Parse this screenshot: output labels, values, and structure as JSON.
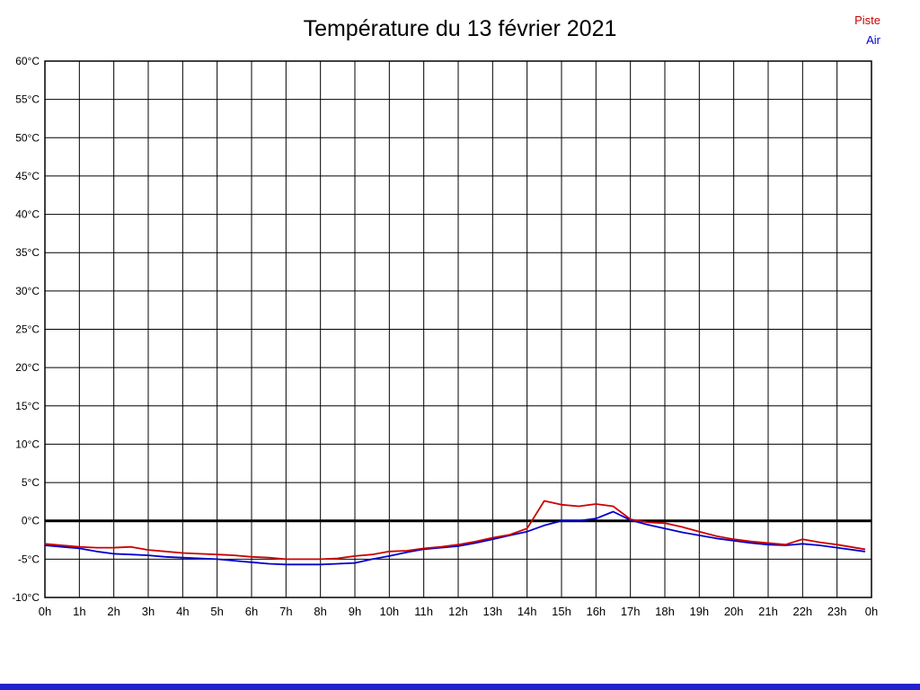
{
  "legend": {
    "piste": "Piste",
    "air": "Air"
  },
  "footer_bar_color": "#2222cc",
  "chart_data": {
    "type": "line",
    "title": "Température du 13 février 2021",
    "xlabel": "",
    "ylabel": "",
    "grid": true,
    "legend_position": "top-right",
    "x_axis": {
      "min": 0,
      "max": 24,
      "tick_labels": [
        "0h",
        "1h",
        "2h",
        "3h",
        "4h",
        "5h",
        "6h",
        "7h",
        "8h",
        "9h",
        "10h",
        "11h",
        "12h",
        "13h",
        "14h",
        "15h",
        "16h",
        "17h",
        "18h",
        "19h",
        "20h",
        "21h",
        "22h",
        "23h",
        "0h"
      ]
    },
    "y_axis": {
      "min": -10,
      "max": 60,
      "tick_step": 5,
      "unit": "°C"
    },
    "zero_line": true,
    "series": [
      {
        "name": "Piste",
        "color": "#cc0000",
        "points": [
          [
            0,
            -3.0
          ],
          [
            0.5,
            -3.2
          ],
          [
            1,
            -3.4
          ],
          [
            1.5,
            -3.5
          ],
          [
            2,
            -3.5
          ],
          [
            2.5,
            -3.4
          ],
          [
            3,
            -3.8
          ],
          [
            3.5,
            -4.0
          ],
          [
            4,
            -4.2
          ],
          [
            4.5,
            -4.3
          ],
          [
            5,
            -4.4
          ],
          [
            5.5,
            -4.5
          ],
          [
            6,
            -4.7
          ],
          [
            6.5,
            -4.8
          ],
          [
            7,
            -5.0
          ],
          [
            7.5,
            -5.0
          ],
          [
            8,
            -5.0
          ],
          [
            8.5,
            -4.9
          ],
          [
            9,
            -4.6
          ],
          [
            9.5,
            -4.4
          ],
          [
            10,
            -4.0
          ],
          [
            10.5,
            -3.9
          ],
          [
            11,
            -3.6
          ],
          [
            11.5,
            -3.4
          ],
          [
            12,
            -3.1
          ],
          [
            12.5,
            -2.7
          ],
          [
            13,
            -2.2
          ],
          [
            13.5,
            -1.8
          ],
          [
            14,
            -1.0
          ],
          [
            14.5,
            2.6
          ],
          [
            15,
            2.1
          ],
          [
            15.5,
            1.9
          ],
          [
            16,
            2.2
          ],
          [
            16.5,
            1.9
          ],
          [
            17,
            0.2
          ],
          [
            17.5,
            -0.2
          ],
          [
            18,
            -0.3
          ],
          [
            18.5,
            -0.8
          ],
          [
            19,
            -1.4
          ],
          [
            19.5,
            -2.0
          ],
          [
            20,
            -2.4
          ],
          [
            20.5,
            -2.7
          ],
          [
            21,
            -2.9
          ],
          [
            21.5,
            -3.1
          ],
          [
            22,
            -2.4
          ],
          [
            22.5,
            -2.8
          ],
          [
            23,
            -3.1
          ],
          [
            23.8,
            -3.7
          ]
        ]
      },
      {
        "name": "Air",
        "color": "#0000cc",
        "points": [
          [
            0,
            -3.2
          ],
          [
            0.5,
            -3.4
          ],
          [
            1,
            -3.6
          ],
          [
            1.5,
            -4.0
          ],
          [
            2,
            -4.3
          ],
          [
            2.5,
            -4.4
          ],
          [
            3,
            -4.5
          ],
          [
            3.5,
            -4.7
          ],
          [
            4,
            -4.8
          ],
          [
            4.5,
            -4.9
          ],
          [
            5,
            -5.0
          ],
          [
            5.5,
            -5.2
          ],
          [
            6,
            -5.4
          ],
          [
            6.5,
            -5.6
          ],
          [
            7,
            -5.7
          ],
          [
            7.5,
            -5.7
          ],
          [
            8,
            -5.7
          ],
          [
            8.5,
            -5.6
          ],
          [
            9,
            -5.5
          ],
          [
            9.5,
            -5.0
          ],
          [
            10,
            -4.6
          ],
          [
            10.5,
            -4.1
          ],
          [
            11,
            -3.7
          ],
          [
            11.5,
            -3.5
          ],
          [
            12,
            -3.3
          ],
          [
            12.5,
            -2.9
          ],
          [
            13,
            -2.4
          ],
          [
            13.5,
            -1.9
          ],
          [
            14,
            -1.4
          ],
          [
            14.5,
            -0.6
          ],
          [
            15,
            0.0
          ],
          [
            15.5,
            0.0
          ],
          [
            16,
            0.3
          ],
          [
            16.5,
            1.2
          ],
          [
            17,
            0.1
          ],
          [
            17.5,
            -0.5
          ],
          [
            18,
            -1.0
          ],
          [
            18.5,
            -1.5
          ],
          [
            19,
            -1.9
          ],
          [
            19.5,
            -2.3
          ],
          [
            20,
            -2.6
          ],
          [
            20.5,
            -2.9
          ],
          [
            21,
            -3.1
          ],
          [
            21.5,
            -3.2
          ],
          [
            22,
            -3.0
          ],
          [
            22.5,
            -3.2
          ],
          [
            23,
            -3.5
          ],
          [
            23.8,
            -4.0
          ]
        ]
      }
    ]
  }
}
